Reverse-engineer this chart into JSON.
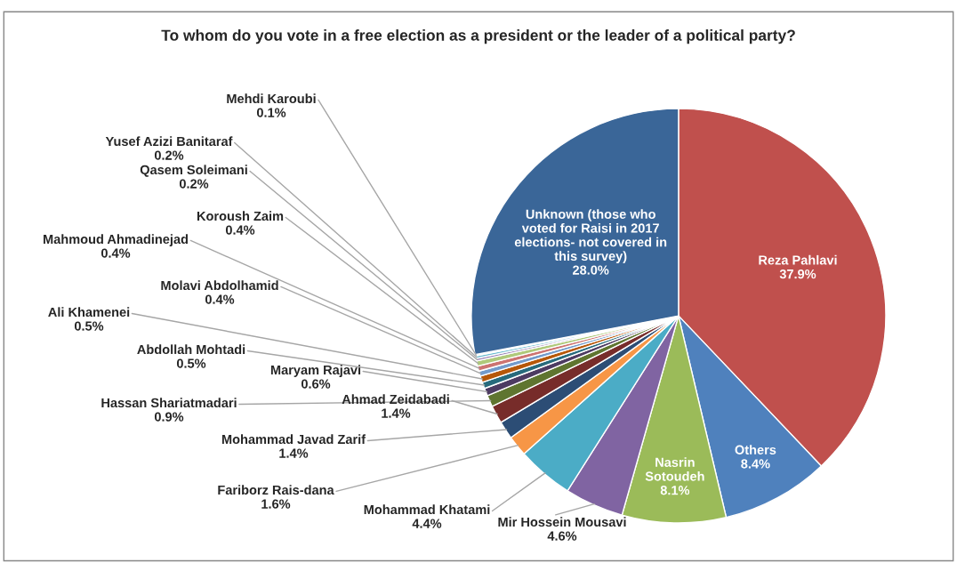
{
  "chart_data": {
    "type": "pie",
    "title": "To whom do you vote in a free election as a president or the leader of a political party?",
    "categories": [
      "Reza Pahlavi",
      "Others",
      "Nasrin\nSotoudeh",
      "Mir Hossein Mousavi",
      "Mohammad Khatami",
      "Fariborz Rais-dana",
      "Mohammad Javad Zarif",
      "Ahmad Zeidabadi",
      "Hassan Shariatmadari",
      "Maryam Rajavi",
      "Abdollah Mohtadi",
      "Ali Khamenei",
      "Molavi Abdolhamid",
      "Mahmoud Ahmadinejad",
      "Koroush Zaim",
      "Qasem Soleimani",
      "Yusef Azizi Banitaraf",
      "Mehdi Karoubi",
      "Unknown (those who\nvoted for Raisi in 2017\nelections- not covered in\nthis survey)"
    ],
    "values": [
      37.9,
      8.4,
      8.1,
      4.6,
      4.4,
      1.6,
      1.4,
      1.4,
      0.9,
      0.6,
      0.5,
      0.5,
      0.4,
      0.4,
      0.4,
      0.2,
      0.2,
      0.1,
      28.0
    ],
    "colors": [
      "#c0504d",
      "#4f81bd",
      "#9bbb59",
      "#8064a2",
      "#4bacc6",
      "#f79646",
      "#2c4d75",
      "#772c2a",
      "#5f7530",
      "#4d3b62",
      "#276a7c",
      "#b65708",
      "#729aca",
      "#cd7371",
      "#afc97a",
      "#9983b5",
      "#6fbdd3",
      "#f9ab6b",
      "#3a6698"
    ],
    "value_labels": [
      "37.9%",
      "8.4%",
      "8.1%",
      "4.6%",
      "4.4%",
      "1.6%",
      "1.4%",
      "1.4%",
      "0.9%",
      "0.6%",
      "0.5%",
      "0.5%",
      "0.4%",
      "0.4%",
      "0.4%",
      "0.2%",
      "0.2%",
      "0.1%",
      "28.0%"
    ],
    "legend": false
  }
}
